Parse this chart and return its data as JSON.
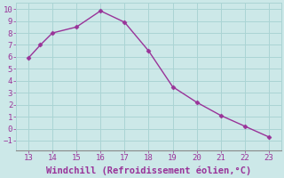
{
  "x": [
    13,
    13.5,
    14,
    15,
    16,
    17,
    18,
    19,
    20,
    21,
    22,
    23
  ],
  "y": [
    5.9,
    7.0,
    8.0,
    8.5,
    9.85,
    8.9,
    6.5,
    3.5,
    2.2,
    1.1,
    0.2,
    -0.7
  ],
  "line_color": "#993399",
  "marker": "D",
  "marker_size": 2.5,
  "background_color": "#cce8e8",
  "grid_color": "#aad4d4",
  "xlabel": "Windchill (Refroidissement éolien,°C)",
  "xlim": [
    12.5,
    23.5
  ],
  "ylim": [
    -1.8,
    10.5
  ],
  "xticks": [
    13,
    14,
    15,
    16,
    17,
    18,
    19,
    20,
    21,
    22,
    23
  ],
  "yticks": [
    -1,
    0,
    1,
    2,
    3,
    4,
    5,
    6,
    7,
    8,
    9,
    10
  ],
  "tick_color": "#993399",
  "label_color": "#993399",
  "tick_fontsize": 6.5,
  "xlabel_fontsize": 7.5,
  "linewidth": 1.0
}
